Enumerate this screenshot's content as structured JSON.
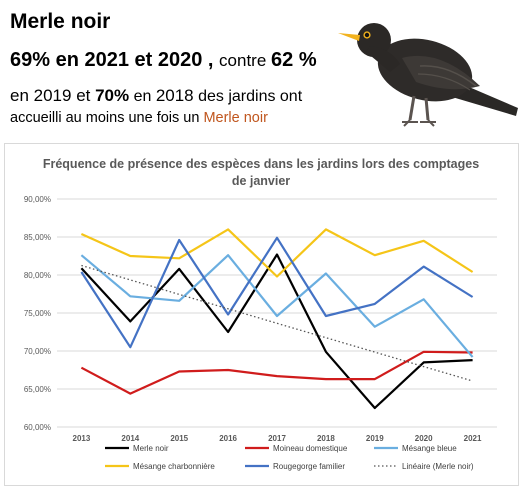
{
  "header": {
    "title": "Merle noir",
    "stat_part1": "69% en 2021 et 2020",
    "stat_part2": " , ",
    "stat_part3": "contre ",
    "stat_part4": "62 %",
    "desc_en": "en ",
    "desc_y2019": "2019",
    "desc_et": " et ",
    "desc_pct70": "70%",
    "desc_en2": "  en ",
    "desc_y2018": "2018",
    "desc_rest": " des jardins ont",
    "desc2_text": "accueilli au moins une fois un ",
    "desc2_accent": "Merle noir",
    "accent_color": "#c0561e"
  },
  "chart_data": {
    "type": "line",
    "title_line1": "Fréquence de présence des espèces dans les jardins lors des comptages",
    "title_line2": "de janvier",
    "categories": [
      "2013",
      "2014",
      "2015",
      "2016",
      "2017",
      "2018",
      "2019",
      "2020",
      "2021"
    ],
    "ylim": [
      0.6,
      0.9
    ],
    "yticks": [
      "60,00%",
      "65,00%",
      "70,00%",
      "75,00%",
      "80,00%",
      "85,00%",
      "90,00%"
    ],
    "ytick_values": [
      0.6,
      0.65,
      0.7,
      0.75,
      0.8,
      0.85,
      0.9
    ],
    "grid": true,
    "legend_position": "bottom",
    "series": [
      {
        "name": "Merle noir",
        "color": "#000000",
        "dash": false,
        "values": [
          0.809,
          0.739,
          0.808,
          0.725,
          0.827,
          0.699,
          0.625,
          0.685,
          0.688
        ]
      },
      {
        "name": "Moineau domestique",
        "color": "#d01c1c",
        "dash": false,
        "values": [
          0.678,
          0.644,
          0.673,
          0.675,
          0.667,
          0.663,
          0.663,
          0.699,
          0.698
        ]
      },
      {
        "name": "Mésange bleue",
        "color": "#6aaee0",
        "dash": false,
        "values": [
          0.826,
          0.772,
          0.766,
          0.826,
          0.746,
          0.802,
          0.732,
          0.768,
          0.692
        ]
      },
      {
        "name": "Mésange charbonnière",
        "color": "#f5c518",
        "dash": false,
        "values": [
          0.854,
          0.825,
          0.822,
          0.86,
          0.798,
          0.86,
          0.826,
          0.845,
          0.804
        ]
      },
      {
        "name": "Rougegorge familier",
        "color": "#4472c4",
        "dash": false,
        "values": [
          0.804,
          0.705,
          0.846,
          0.748,
          0.849,
          0.746,
          0.762,
          0.811,
          0.771
        ]
      },
      {
        "name": "Linéaire (Merle noir)",
        "color": "#555555",
        "dash": true,
        "values": [
          0.8125,
          0.7935,
          0.7745,
          0.7555,
          0.7365,
          0.7175,
          0.6985,
          0.6795,
          0.6605
        ]
      }
    ]
  }
}
